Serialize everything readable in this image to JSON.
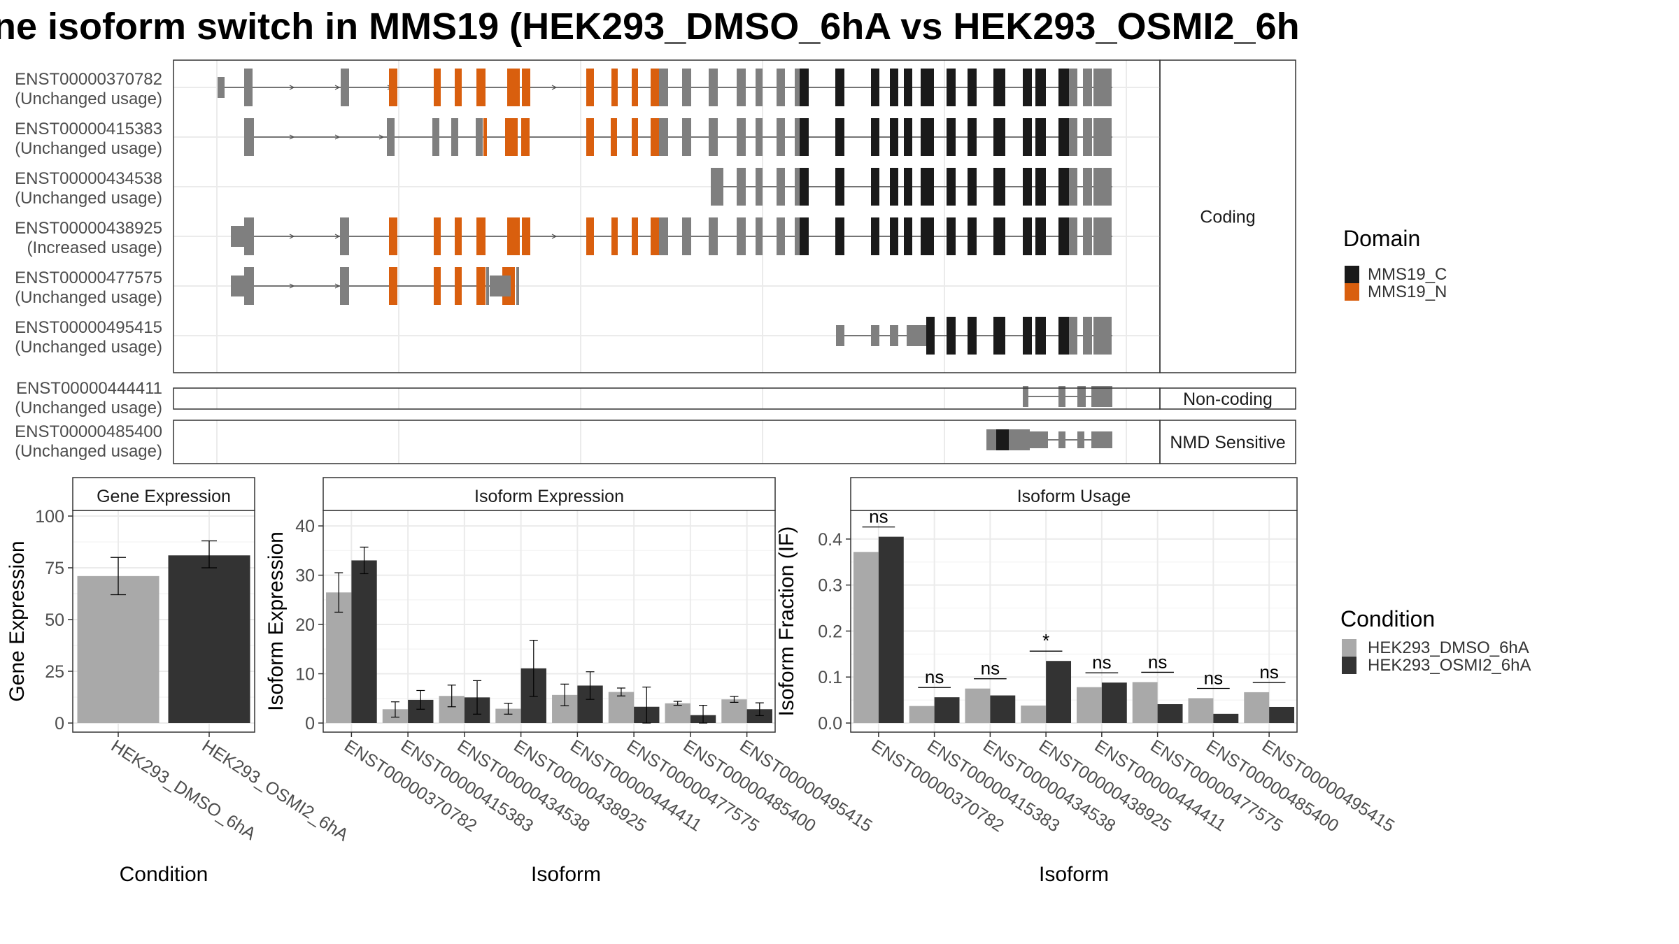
{
  "title": "ne isoform switch in MMS19 (HEK293_DMSO_6hA vs HEK293_OSMI2_6h",
  "colors": {
    "cond1": "#a9a9a9",
    "cond2": "#333333",
    "MMS19_C": "#1a1a1a",
    "MMS19_N": "#d95f0e",
    "noncoding_exon": "#8c8c8c",
    "grid": "#ebebeb",
    "frame": "#333333"
  },
  "structure": {
    "category_labels": [
      "Coding",
      "Non-coding",
      "NMD Sensitive"
    ],
    "transcripts": [
      {
        "id": "ENST00000370782",
        "usage": "(Unchanged usage)",
        "category": "Coding"
      },
      {
        "id": "ENST00000415383",
        "usage": "(Unchanged usage)",
        "category": "Coding"
      },
      {
        "id": "ENST00000434538",
        "usage": "(Unchanged usage)",
        "category": "Coding"
      },
      {
        "id": "ENST00000438925",
        "usage": "(Increased usage)",
        "category": "Coding"
      },
      {
        "id": "ENST00000477575",
        "usage": "(Unchanged usage)",
        "category": "Coding"
      },
      {
        "id": "ENST00000495415",
        "usage": "(Unchanged usage)",
        "category": "Coding"
      },
      {
        "id": "ENST00000444411",
        "usage": "(Unchanged usage)",
        "category": "Non-coding"
      },
      {
        "id": "ENST00000485400",
        "usage": "(Unchanged usage)",
        "category": "NMD Sensitive"
      }
    ],
    "domain_legend": {
      "title": "Domain",
      "items": [
        "MMS19_C",
        "MMS19_N"
      ]
    }
  },
  "condition_legend": {
    "title": "Condition",
    "items": [
      "HEK293_DMSO_6hA",
      "HEK293_OSMI2_6hA"
    ]
  },
  "chart_data": [
    {
      "type": "bar",
      "title": "Gene Expression",
      "xlabel": "Condition",
      "ylabel": "Gene Expression",
      "categories": [
        "HEK293_DMSO_6hA",
        "HEK293_OSMI2_6hA"
      ],
      "values": [
        71,
        81
      ],
      "errors": [
        [
          62,
          80
        ],
        [
          75,
          88
        ]
      ],
      "ylim": [
        0,
        100
      ],
      "yticks": [
        0,
        25,
        50,
        75,
        100
      ]
    },
    {
      "type": "bar",
      "title": "Isoform Expression",
      "xlabel": "Isoform",
      "ylabel": "Isoform Expression",
      "categories": [
        "ENST00000370782",
        "ENST00000415383",
        "ENST00000434538",
        "ENST00000438925",
        "ENST00000444411",
        "ENST00000477575",
        "ENST00000485400",
        "ENST00000495415"
      ],
      "series": [
        {
          "name": "HEK293_DMSO_6hA",
          "values": [
            26.5,
            2.8,
            5.5,
            2.9,
            5.7,
            6.3,
            4.0,
            4.8
          ],
          "errors": [
            [
              22.5,
              30.5
            ],
            [
              1.2,
              4.3
            ],
            [
              3.3,
              7.7
            ],
            [
              1.8,
              4.0
            ],
            [
              3.5,
              7.9
            ],
            [
              5.5,
              7.1
            ],
            [
              3.6,
              4.4
            ],
            [
              4.2,
              5.4
            ]
          ]
        },
        {
          "name": "HEK293_OSMI2_6hA",
          "values": [
            33,
            4.7,
            5.2,
            11.1,
            7.6,
            3.3,
            1.6,
            2.8
          ],
          "errors": [
            [
              30.3,
              35.7
            ],
            [
              2.8,
              6.6
            ],
            [
              1.8,
              8.6
            ],
            [
              5.4,
              16.8
            ],
            [
              4.8,
              10.4
            ],
            [
              0,
              7.3
            ],
            [
              0,
              3.6
            ],
            [
              1.5,
              4.1
            ]
          ]
        }
      ],
      "ylim": [
        0,
        42
      ],
      "yticks": [
        0,
        10,
        20,
        30,
        40
      ]
    },
    {
      "type": "bar",
      "title": "Isoform Usage",
      "xlabel": "Isoform",
      "ylabel": "Isoform Fraction (IF)",
      "categories": [
        "ENST00000370782",
        "ENST00000415383",
        "ENST00000434538",
        "ENST00000438925",
        "ENST00000444411",
        "ENST00000477575",
        "ENST00000485400",
        "ENST00000495415"
      ],
      "series": [
        {
          "name": "HEK293_DMSO_6hA",
          "values": [
            0.372,
            0.037,
            0.075,
            0.038,
            0.078,
            0.089,
            0.054,
            0.067
          ]
        },
        {
          "name": "HEK293_OSMI2_6hA",
          "values": [
            0.405,
            0.056,
            0.06,
            0.135,
            0.088,
            0.041,
            0.02,
            0.035
          ]
        }
      ],
      "significance": [
        "ns",
        "ns",
        "ns",
        "*",
        "ns",
        "ns",
        "ns",
        "ns"
      ],
      "ylim": [
        0,
        0.45
      ],
      "yticks": [
        "0.0",
        "0.1",
        "0.2",
        "0.3",
        "0.4"
      ]
    }
  ]
}
